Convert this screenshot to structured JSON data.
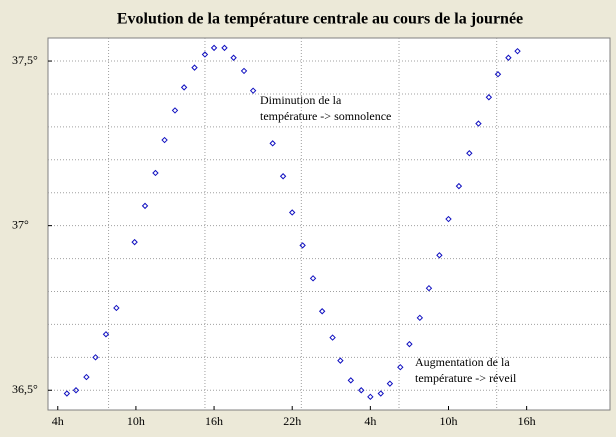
{
  "chart_data": {
    "type": "scatter",
    "title": "Evolution de la température centrale au cours de la journée",
    "annotations": [
      [
        "Diminution de la",
        "température -> somnolence"
      ],
      [
        "Augmentation de la",
        "température -> réveil"
      ]
    ],
    "x": [
      4.7,
      5.4,
      6.2,
      6.9,
      7.7,
      8.5,
      9.9,
      10.7,
      11.5,
      12.2,
      13.0,
      13.7,
      14.5,
      15.3,
      16.0,
      16.8,
      17.5,
      18.3,
      19.0,
      20.5,
      21.3,
      22.0,
      22.8,
      23.6,
      24.3,
      25.1,
      25.7,
      26.5,
      27.3,
      28.0,
      28.8,
      29.5,
      30.3,
      31.0,
      31.8,
      32.5,
      33.3,
      34.0,
      34.8,
      35.6,
      36.3,
      37.1,
      37.8,
      38.6,
      39.3
    ],
    "values": [
      36.49,
      36.5,
      36.54,
      36.6,
      36.67,
      36.75,
      36.95,
      37.06,
      37.16,
      37.26,
      37.35,
      37.42,
      37.48,
      37.52,
      37.54,
      37.54,
      37.51,
      37.47,
      37.41,
      37.25,
      37.15,
      37.04,
      36.94,
      36.84,
      36.74,
      36.66,
      36.59,
      36.53,
      36.5,
      36.48,
      36.49,
      36.52,
      36.57,
      36.64,
      36.72,
      36.81,
      36.91,
      37.02,
      37.12,
      37.22,
      37.31,
      37.39,
      37.46,
      37.51,
      37.53
    ],
    "color": "#1010c0",
    "xlim": [
      3.25,
      46.4
    ],
    "ylim": [
      36.44,
      37.57
    ],
    "xticks": [
      {
        "value": 4,
        "label": "4h"
      },
      {
        "value": 10,
        "label": "10h"
      },
      {
        "value": 16,
        "label": "16h"
      },
      {
        "value": 22,
        "label": "22h"
      },
      {
        "value": 28,
        "label": "4h"
      },
      {
        "value": 34,
        "label": "10h"
      },
      {
        "value": 40,
        "label": "16h"
      }
    ],
    "yticks": [
      {
        "value": 36.5,
        "label": "36,5°"
      },
      {
        "value": 37,
        "label": "37°"
      },
      {
        "value": 37.5,
        "label": "37,5°"
      }
    ],
    "xgrid": [
      7.9,
      15.3,
      22.7,
      30.2,
      37.7
    ],
    "ygrid": [
      36.6,
      36.7,
      36.8,
      36.9,
      37.1,
      37.2,
      37.3,
      37.4
    ],
    "grid": true
  }
}
